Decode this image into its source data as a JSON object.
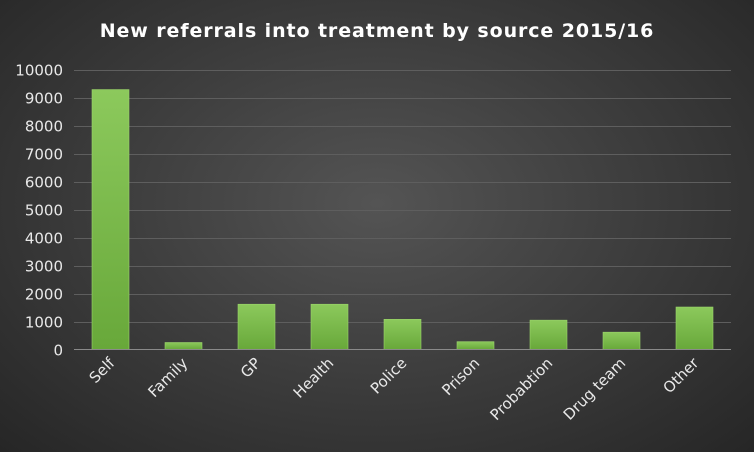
{
  "chart_data": {
    "type": "bar",
    "title": "New referrals into treatment by source 2015/16",
    "xlabel": "",
    "ylabel": "",
    "categories": [
      "Self",
      "Family",
      "GP",
      "Health",
      "Police",
      "Prison",
      "Probabtion",
      "Drug team",
      "Other"
    ],
    "values": [
      9300,
      250,
      1620,
      1620,
      1080,
      280,
      1050,
      620,
      1520
    ],
    "ylim": [
      0,
      10000
    ],
    "yticks": [
      0,
      1000,
      2000,
      3000,
      4000,
      5000,
      6000,
      7000,
      8000,
      9000,
      10000
    ],
    "grid": true,
    "legend": "none",
    "colors": {
      "bar_top": "#8cc95c",
      "bar_bottom": "#68a83a",
      "background": "#3f3f3f",
      "text": "#ffffff"
    }
  }
}
